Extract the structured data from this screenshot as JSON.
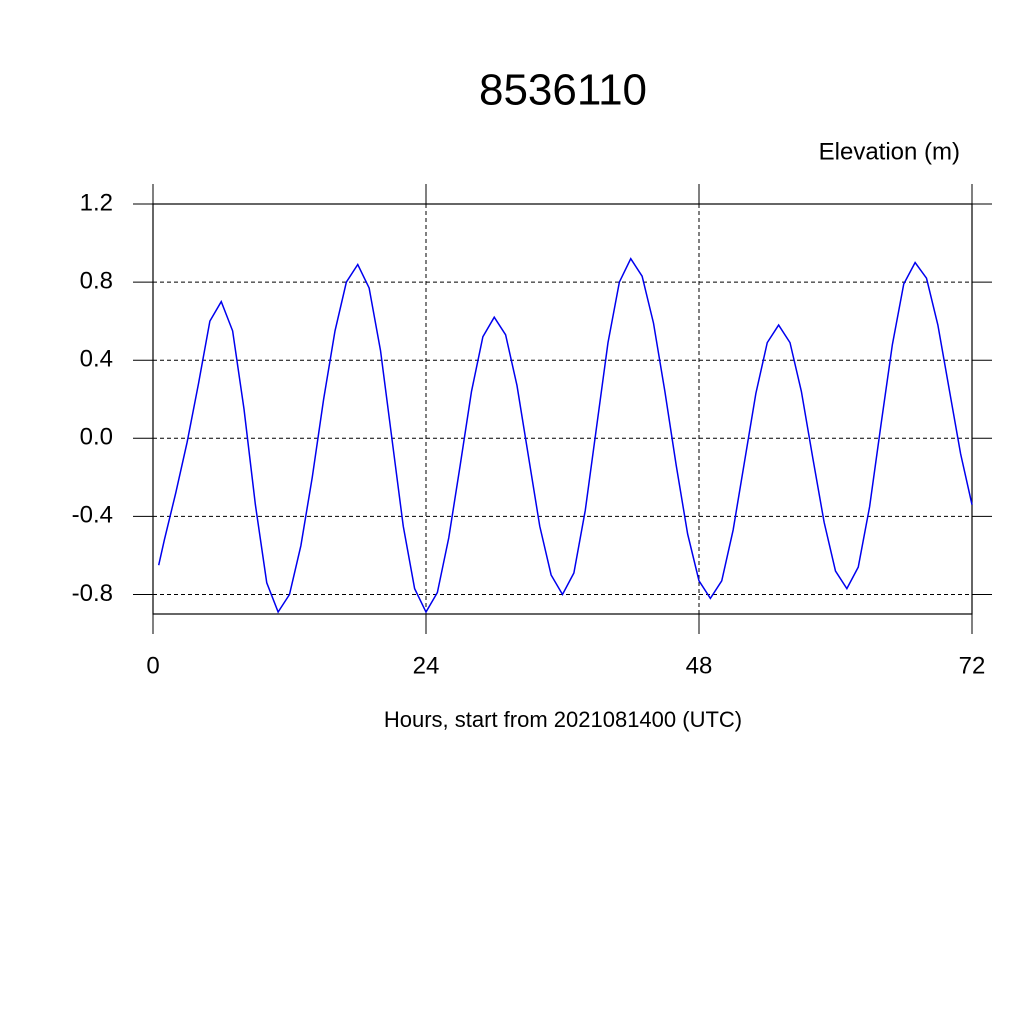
{
  "chart_data": {
    "type": "line",
    "title": "8536110",
    "y_label": "Elevation (m)",
    "x_label": "Hours, start from 2021081400 (UTC)",
    "series": [
      {
        "color": "#0000ee",
        "x": [
          0.5,
          1,
          2,
          3,
          4,
          5,
          6,
          7,
          8,
          9,
          10,
          11,
          12,
          13,
          14,
          15,
          16,
          17,
          18,
          19,
          20,
          21,
          22,
          23,
          24,
          25,
          26,
          27,
          28,
          29,
          30,
          31,
          32,
          33,
          34,
          35,
          36,
          37,
          38,
          39,
          40,
          41,
          42,
          43,
          44,
          45,
          46,
          47,
          48,
          49,
          50,
          51,
          52,
          53,
          54,
          55,
          56,
          57,
          58,
          59,
          60,
          61,
          62,
          63,
          64,
          65,
          66,
          67,
          68,
          69,
          70,
          71,
          72
        ],
        "values": [
          -0.65,
          -0.52,
          -0.28,
          -0.02,
          0.28,
          0.6,
          0.7,
          0.55,
          0.15,
          -0.34,
          -0.74,
          -0.89,
          -0.8,
          -0.55,
          -0.2,
          0.2,
          0.55,
          0.8,
          0.89,
          0.77,
          0.45,
          0,
          -0.45,
          -0.77,
          -0.89,
          -0.79,
          -0.51,
          -0.14,
          0.24,
          0.52,
          0.62,
          0.53,
          0.27,
          -0.09,
          -0.45,
          -0.7,
          -0.8,
          -0.69,
          -0.37,
          0.06,
          0.49,
          0.8,
          0.92,
          0.83,
          0.59,
          0.24,
          -0.14,
          -0.49,
          -0.73,
          -0.82,
          -0.73,
          -0.47,
          -0.12,
          0.23,
          0.49,
          0.58,
          0.49,
          0.24,
          -0.1,
          -0.43,
          -0.68,
          -0.77,
          -0.66,
          -0.35,
          0.07,
          0.48,
          0.79,
          0.9,
          0.82,
          0.58,
          0.25,
          -0.08,
          -0.34
        ]
      }
    ],
    "xlim": [
      0,
      72
    ],
    "xticks": [
      0,
      24,
      48,
      72
    ],
    "ylim": [
      -0.9,
      1.2
    ],
    "yticks": [
      -0.8,
      -0.4,
      {
        "value": 0,
        "label": "0.0"
      },
      0.4,
      0.8,
      1.2
    ],
    "grid": true
  }
}
